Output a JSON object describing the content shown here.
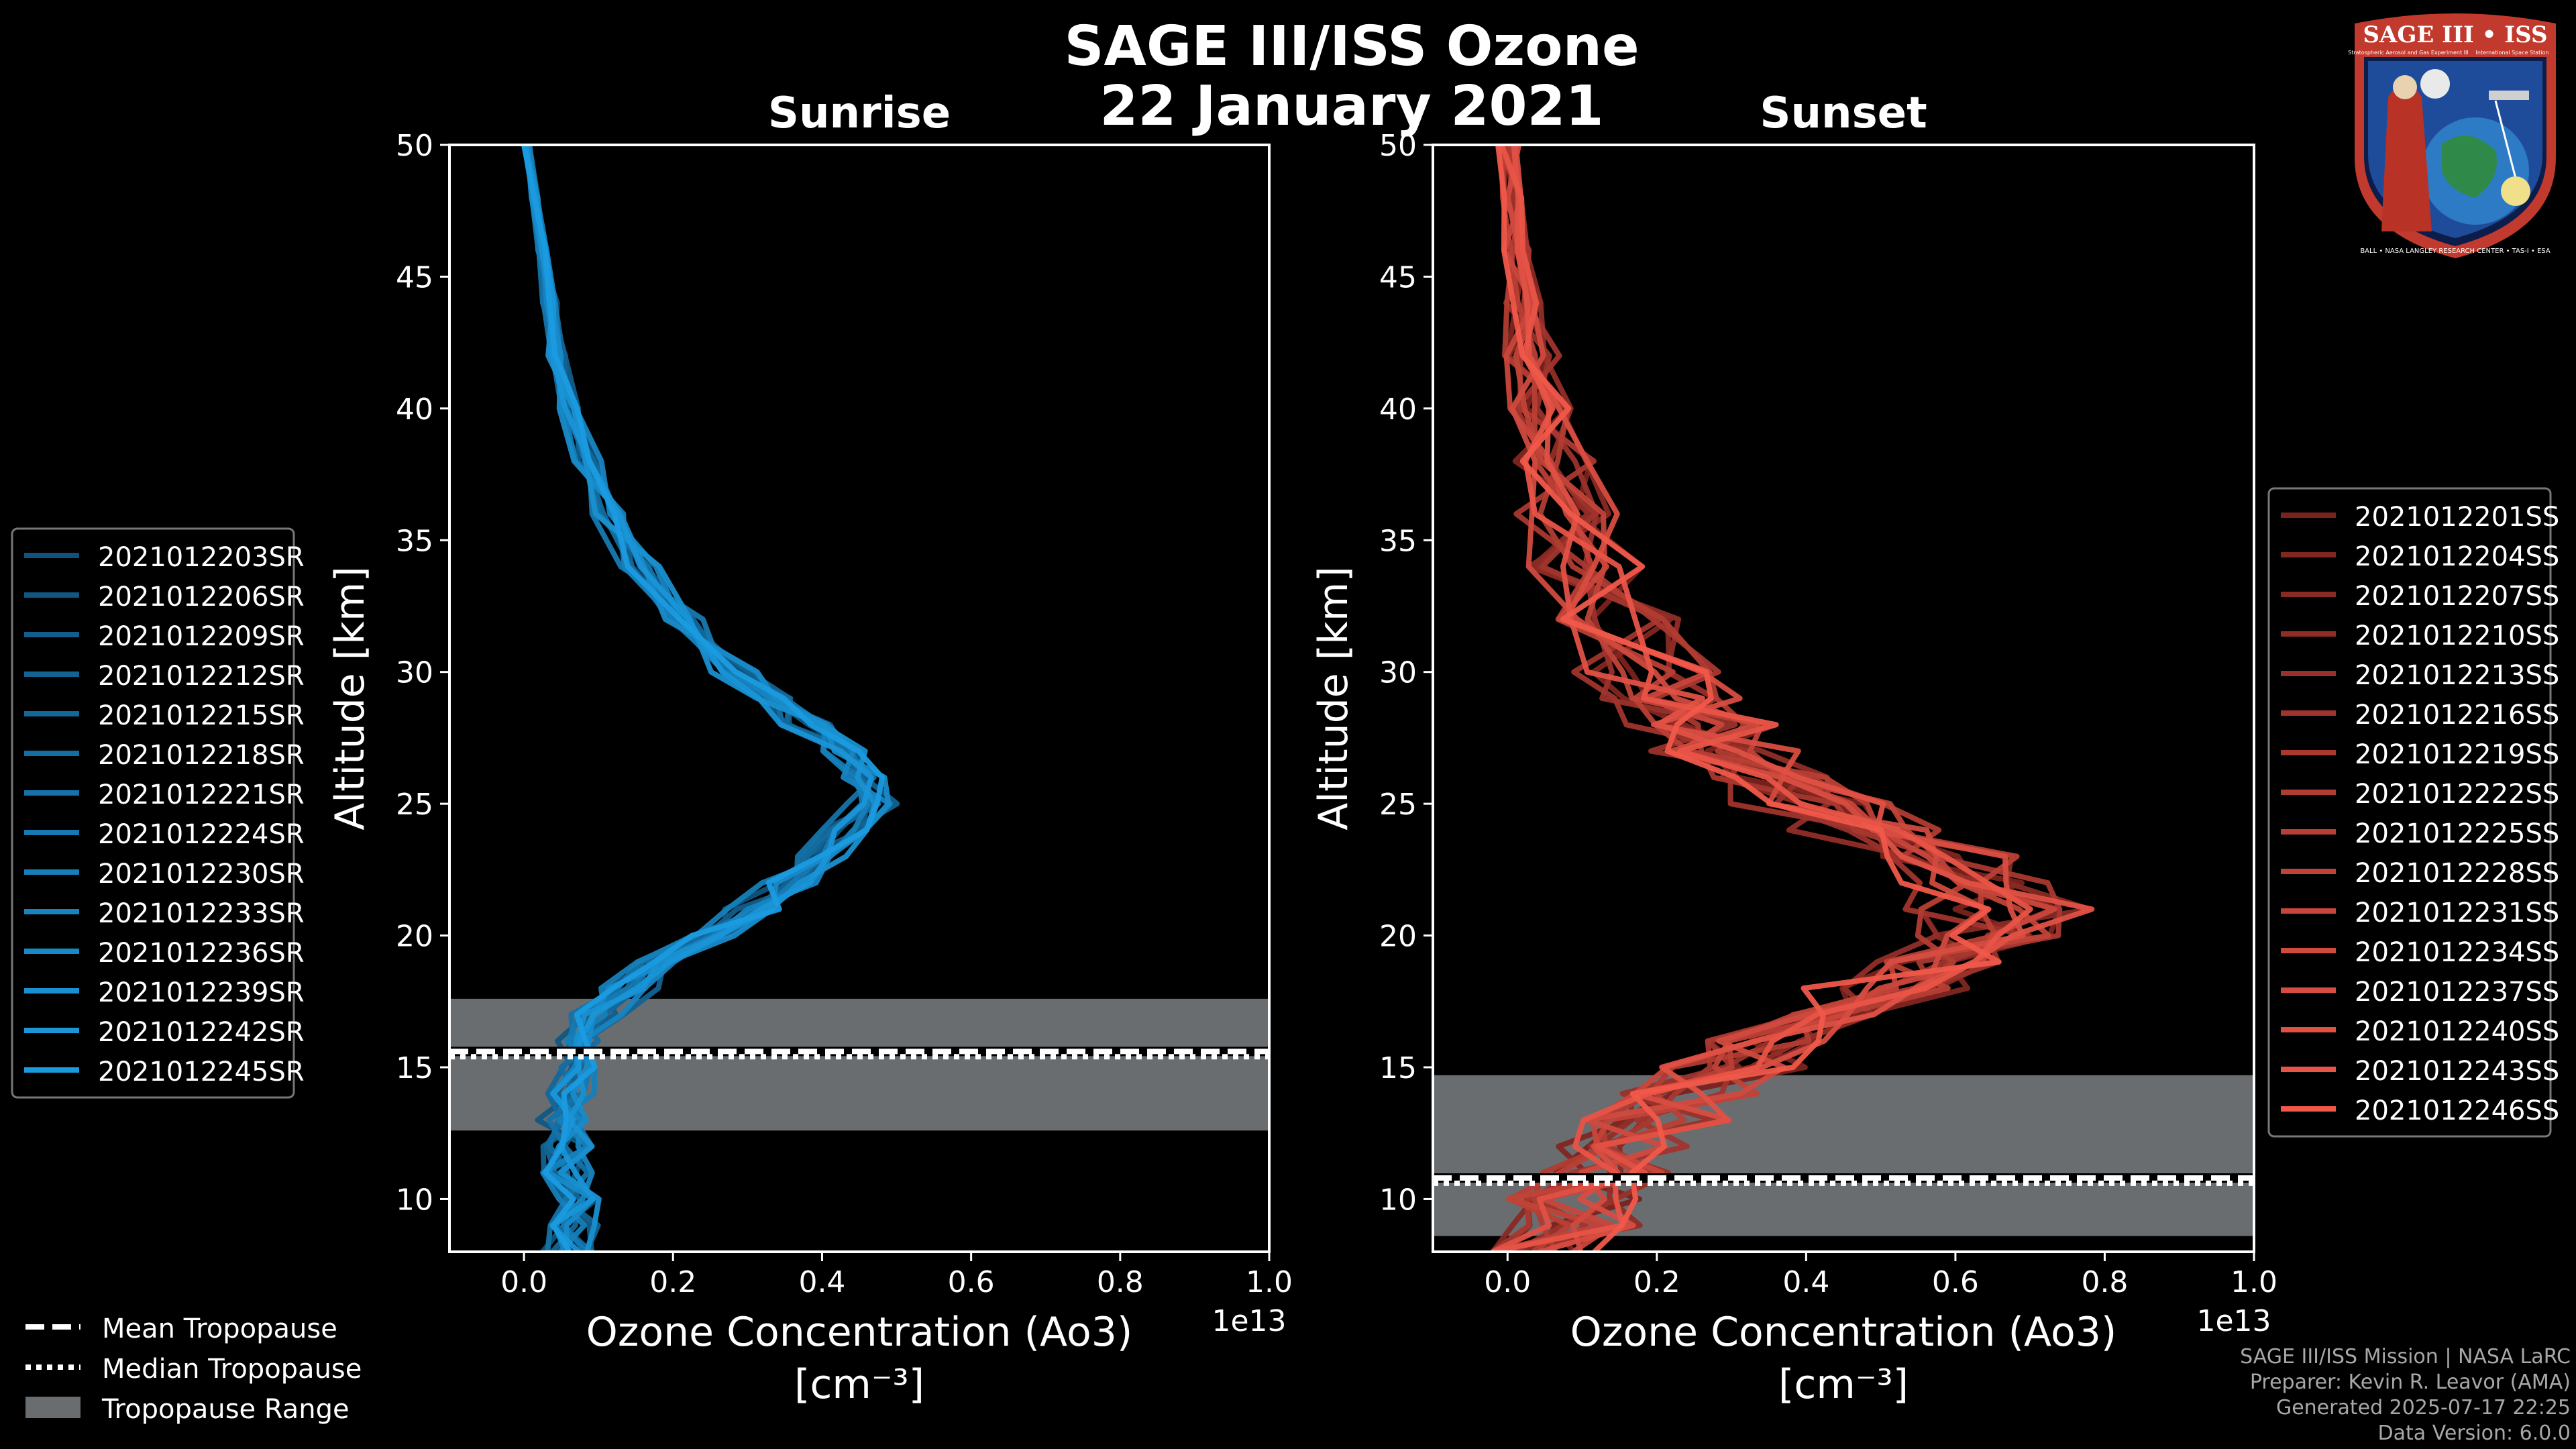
{
  "title": {
    "line1": "SAGE III/ISS Ozone",
    "line2": "22 January 2021"
  },
  "colors": {
    "sunrise": "#1a9be0",
    "sunset": "#f0584a",
    "tropopause": "#6a6d70"
  },
  "chart_data": [
    {
      "type": "line",
      "title": "Sunrise",
      "xlabel": "Ozone Concentration (Ao3)",
      "xunit": "[cm⁻³]",
      "ylabel": "Altitude [km]",
      "xlim": [
        -0.1,
        1.0
      ],
      "ylim": [
        8,
        50
      ],
      "x_scale_label": "1e13",
      "xticks": [
        0.0,
        0.2,
        0.4,
        0.6,
        0.8,
        1.0
      ],
      "yticks": [
        10,
        15,
        20,
        25,
        30,
        35,
        40,
        45,
        50
      ],
      "tropopause": {
        "mean": 15.6,
        "median": 15.4,
        "range": [
          12.6,
          17.6
        ]
      },
      "altitudes": [
        8,
        9,
        10,
        11,
        12,
        13,
        14,
        15,
        16,
        17,
        18,
        19,
        20,
        21,
        22,
        23,
        24,
        25,
        26,
        27,
        28,
        29,
        30,
        32,
        34,
        36,
        38,
        40,
        42,
        44,
        46,
        48,
        50
      ],
      "base_profile": [
        0.06,
        0.07,
        0.07,
        0.06,
        0.06,
        0.05,
        0.06,
        0.07,
        0.08,
        0.1,
        0.14,
        0.19,
        0.25,
        0.31,
        0.36,
        0.4,
        0.44,
        0.46,
        0.45,
        0.42,
        0.38,
        0.33,
        0.28,
        0.21,
        0.155,
        0.115,
        0.085,
        0.06,
        0.045,
        0.035,
        0.025,
        0.015,
        0.005
      ],
      "series": [
        {
          "name": "2021012203SR"
        },
        {
          "name": "2021012206SR"
        },
        {
          "name": "2021012209SR"
        },
        {
          "name": "2021012212SR"
        },
        {
          "name": "2021012215SR"
        },
        {
          "name": "2021012218SR"
        },
        {
          "name": "2021012221SR"
        },
        {
          "name": "2021012224SR"
        },
        {
          "name": "2021012230SR"
        },
        {
          "name": "2021012233SR"
        },
        {
          "name": "2021012236SR"
        },
        {
          "name": "2021012239SR"
        },
        {
          "name": "2021012242SR"
        },
        {
          "name": "2021012245SR"
        }
      ]
    },
    {
      "type": "line",
      "title": "Sunset",
      "xlabel": "Ozone Concentration (Ao3)",
      "xunit": "[cm⁻³]",
      "ylabel": "Altitude [km]",
      "xlim": [
        -0.1,
        1.0
      ],
      "ylim": [
        8,
        50
      ],
      "x_scale_label": "1e13",
      "xticks": [
        0.0,
        0.2,
        0.4,
        0.6,
        0.8,
        1.0
      ],
      "yticks": [
        10,
        15,
        20,
        25,
        30,
        35,
        40,
        45,
        50
      ],
      "tropopause": {
        "mean": 10.8,
        "median": 10.6,
        "range": [
          8.6,
          14.7
        ]
      },
      "altitudes": [
        8,
        9,
        10,
        11,
        12,
        13,
        14,
        15,
        16,
        17,
        18,
        19,
        20,
        21,
        22,
        23,
        24,
        25,
        26,
        27,
        28,
        29,
        30,
        32,
        34,
        36,
        38,
        40,
        42,
        44,
        46,
        48,
        50
      ],
      "base_profile": [
        0.05,
        0.08,
        0.1,
        0.12,
        0.16,
        0.2,
        0.25,
        0.3,
        0.36,
        0.42,
        0.5,
        0.58,
        0.64,
        0.66,
        0.64,
        0.58,
        0.5,
        0.42,
        0.35,
        0.3,
        0.26,
        0.22,
        0.19,
        0.14,
        0.105,
        0.08,
        0.06,
        0.045,
        0.035,
        0.025,
        0.015,
        0.008,
        0.002
      ],
      "series": [
        {
          "name": "2021012201SS"
        },
        {
          "name": "2021012204SS"
        },
        {
          "name": "2021012207SS"
        },
        {
          "name": "2021012210SS"
        },
        {
          "name": "2021012213SS"
        },
        {
          "name": "2021012216SS"
        },
        {
          "name": "2021012219SS"
        },
        {
          "name": "2021012222SS"
        },
        {
          "name": "2021012225SS"
        },
        {
          "name": "2021012228SS"
        },
        {
          "name": "2021012231SS"
        },
        {
          "name": "2021012234SS"
        },
        {
          "name": "2021012237SS"
        },
        {
          "name": "2021012240SS"
        },
        {
          "name": "2021012243SS"
        },
        {
          "name": "2021012246SS"
        }
      ]
    }
  ],
  "tropopause_legend": {
    "mean": "Mean Tropopause",
    "median": "Median Tropopause",
    "range": "Tropopause Range"
  },
  "footer": {
    "mission": "SAGE III/ISS Mission | NASA LaRC",
    "preparer": "Preparer: Kevin R. Leavor (AMA)",
    "generated": "Generated 2025-07-17 22:25",
    "version": "Data Version: 6.0.0"
  },
  "logo": {
    "title": "SAGE III • ISS",
    "subtitle_left": "Stratospheric Aerosol and Gas Experiment III",
    "subtitle_right": "International Space Station",
    "ring_text": "BALL • NASA LANGLEY RESEARCH CENTER • TAS-I • ESA"
  },
  "icons": {
    "logo": "mission-patch-icon"
  }
}
